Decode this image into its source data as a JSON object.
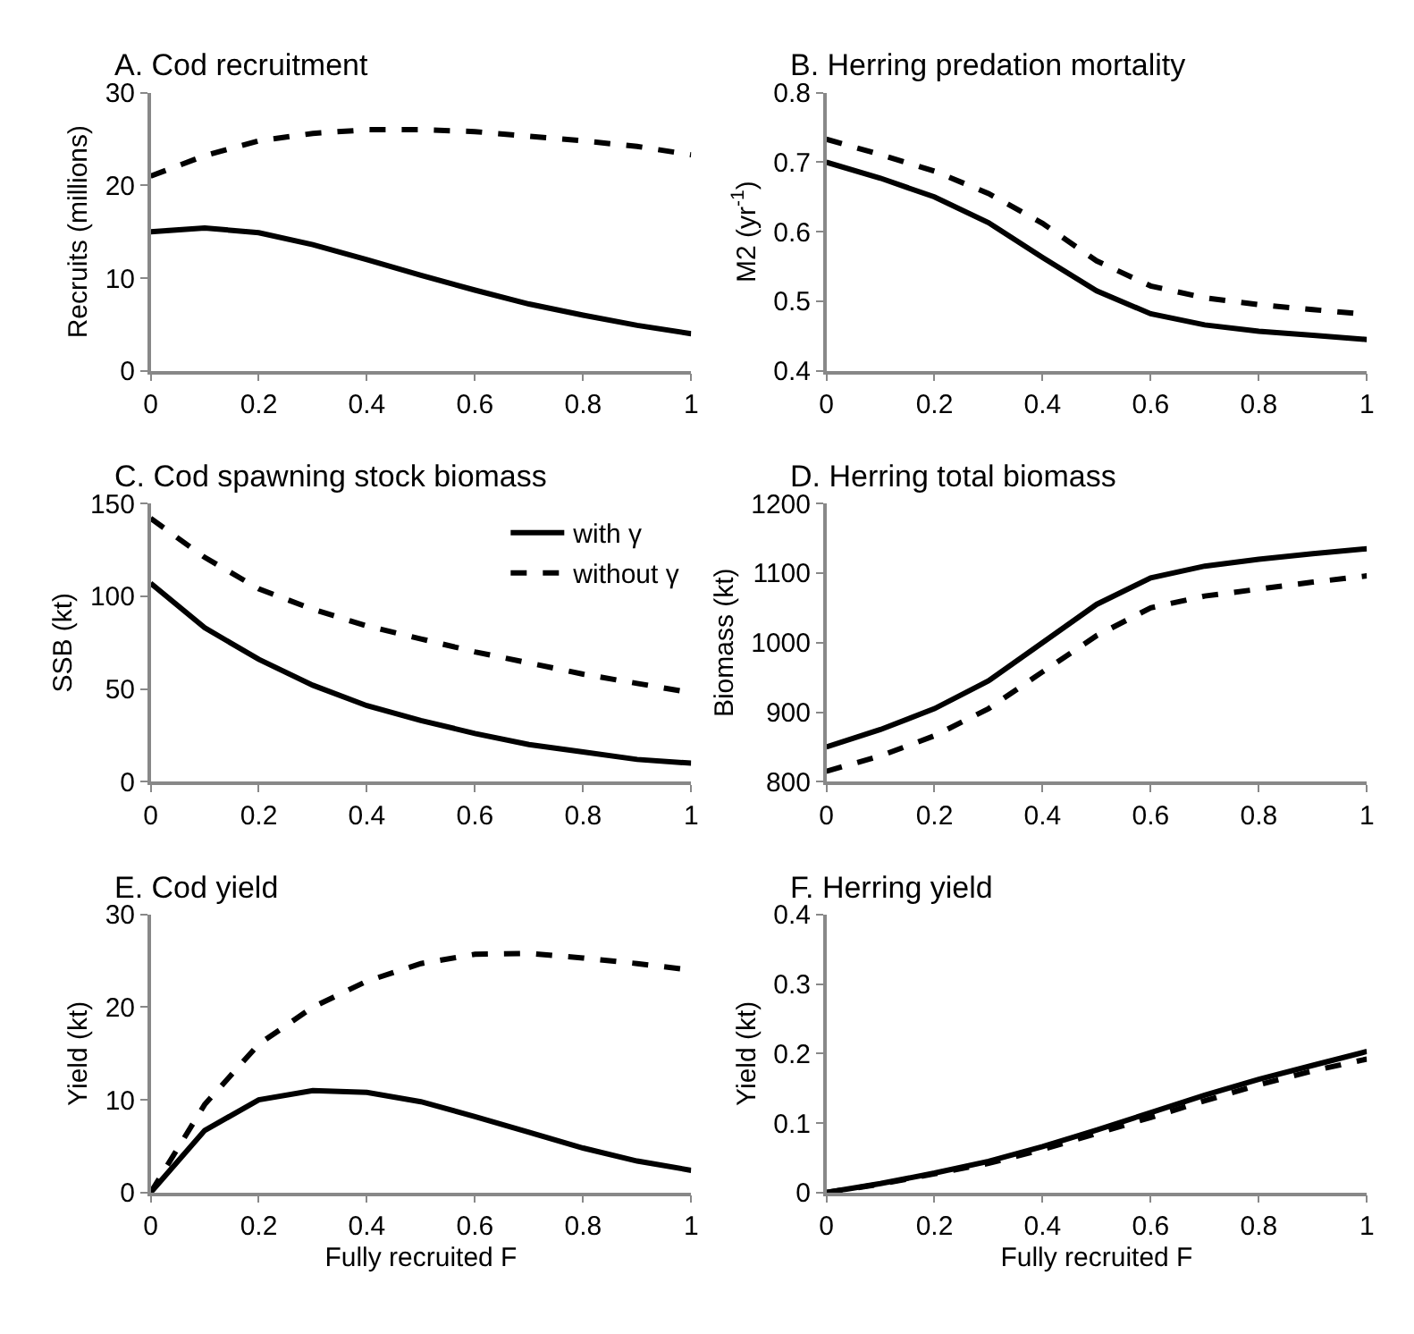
{
  "chart_data": [
    {
      "type": "line",
      "title": "A. Cod recruitment",
      "ylabel": "Recruits (millions)",
      "x": [
        0,
        0.1,
        0.2,
        0.3,
        0.4,
        0.5,
        0.6,
        0.7,
        0.8,
        0.9,
        1
      ],
      "xlim": [
        0,
        1
      ],
      "xticks": [
        0,
        0.2,
        0.4,
        0.6,
        0.8,
        1
      ],
      "ylim": [
        0,
        30
      ],
      "yticks": [
        0,
        10,
        20,
        30
      ],
      "grid": false,
      "legend": false,
      "marker": "none",
      "series": [
        {
          "color": "#000000",
          "line_style": "solid",
          "values": [
            15,
            15.4,
            14.9,
            13.6,
            12,
            10.3,
            8.7,
            7.2,
            6,
            4.9,
            4
          ]
        },
        {
          "color": "#000000",
          "line_style": "dashed",
          "values": [
            21,
            23.2,
            24.8,
            25.6,
            26,
            26,
            25.8,
            25.3,
            24.8,
            24.2,
            23.3
          ]
        }
      ]
    },
    {
      "type": "line",
      "title": "B. Herring predation mortality",
      "ylabel": "M2 (yr$^{-1}$)",
      "x": [
        0,
        0.1,
        0.2,
        0.3,
        0.4,
        0.5,
        0.6,
        0.7,
        0.8,
        0.9,
        1
      ],
      "xlim": [
        0,
        1
      ],
      "xticks": [
        0,
        0.2,
        0.4,
        0.6,
        0.8,
        1
      ],
      "ylim": [
        0.4,
        0.8
      ],
      "yticks": [
        0.4,
        0.5,
        0.6,
        0.7,
        0.8
      ],
      "grid": false,
      "legend": false,
      "marker": "none",
      "series": [
        {
          "color": "#000000",
          "line_style": "solid",
          "values": [
            0.7,
            0.677,
            0.65,
            0.613,
            0.563,
            0.515,
            0.482,
            0.466,
            0.457,
            0.451,
            0.445
          ]
        },
        {
          "color": "#000000",
          "line_style": "dashed",
          "values": [
            0.733,
            0.711,
            0.687,
            0.655,
            0.612,
            0.558,
            0.522,
            0.505,
            0.495,
            0.488,
            0.481
          ]
        }
      ]
    },
    {
      "type": "line",
      "title": "C. Cod spawning stock biomass",
      "ylabel": "SSB (kt)",
      "x": [
        0,
        0.1,
        0.2,
        0.3,
        0.4,
        0.5,
        0.6,
        0.7,
        0.8,
        0.9,
        1
      ],
      "xlim": [
        0,
        1
      ],
      "xticks": [
        0,
        0.2,
        0.4,
        0.6,
        0.8,
        1
      ],
      "ylim": [
        0,
        150
      ],
      "yticks": [
        0,
        50,
        100,
        150
      ],
      "grid": false,
      "legend": "top right",
      "marker": "none",
      "series": [
        {
          "name": "with γ",
          "color": "#000000",
          "line_style": "solid",
          "values": [
            107,
            83,
            66,
            52,
            41,
            33,
            26,
            20,
            16,
            12,
            10
          ]
        },
        {
          "name": "without γ",
          "color": "#000000",
          "line_style": "dashed",
          "values": [
            142,
            121,
            104,
            93,
            84,
            77,
            70,
            64,
            58,
            53,
            48
          ]
        }
      ]
    },
    {
      "type": "line",
      "title": "D. Herring total biomass",
      "ylabel": "Biomass (kt)",
      "x": [
        0,
        0.1,
        0.2,
        0.3,
        0.4,
        0.5,
        0.6,
        0.7,
        0.8,
        0.9,
        1
      ],
      "xlim": [
        0,
        1
      ],
      "xticks": [
        0,
        0.2,
        0.4,
        0.6,
        0.8,
        1
      ],
      "ylim": [
        800,
        1200
      ],
      "yticks": [
        800,
        900,
        1000,
        1100,
        1200
      ],
      "grid": false,
      "legend": false,
      "marker": "none",
      "series": [
        {
          "color": "#000000",
          "line_style": "solid",
          "values": [
            850,
            875,
            905,
            945,
            1000,
            1055,
            1093,
            1110,
            1120,
            1128,
            1135
          ]
        },
        {
          "color": "#000000",
          "line_style": "dashed",
          "values": [
            815,
            837,
            866,
            905,
            958,
            1010,
            1050,
            1067,
            1077,
            1087,
            1096
          ]
        }
      ]
    },
    {
      "type": "line",
      "title": "E. Cod yield",
      "xlabel": "Fully recruited F",
      "ylabel": "Yield (kt)",
      "x": [
        0,
        0.1,
        0.2,
        0.3,
        0.4,
        0.5,
        0.6,
        0.7,
        0.8,
        0.9,
        1
      ],
      "xlim": [
        0,
        1
      ],
      "xticks": [
        0,
        0.2,
        0.4,
        0.6,
        0.8,
        1
      ],
      "ylim": [
        0,
        30
      ],
      "yticks": [
        0,
        10,
        20,
        30
      ],
      "grid": false,
      "legend": false,
      "marker": "none",
      "series": [
        {
          "color": "#000000",
          "line_style": "solid",
          "values": [
            0,
            6.7,
            10,
            11,
            10.8,
            9.8,
            8.2,
            6.5,
            4.8,
            3.4,
            2.4
          ]
        },
        {
          "color": "#000000",
          "line_style": "dashed",
          "values": [
            0,
            9.5,
            16,
            20,
            22.8,
            24.7,
            25.7,
            25.8,
            25.3,
            24.7,
            24
          ]
        }
      ]
    },
    {
      "type": "line",
      "title": "F. Herring yield",
      "xlabel": "Fully recruited F",
      "ylabel": "Yield (kt)",
      "x": [
        0,
        0.1,
        0.2,
        0.3,
        0.4,
        0.5,
        0.6,
        0.7,
        0.8,
        0.9,
        1
      ],
      "xlim": [
        0,
        1
      ],
      "xticks": [
        0,
        0.2,
        0.4,
        0.6,
        0.8,
        1
      ],
      "ylim": [
        0,
        0.4
      ],
      "yticks": [
        0,
        0.1,
        0.2,
        0.3,
        0.4
      ],
      "grid": false,
      "legend": false,
      "marker": "none",
      "series": [
        {
          "color": "#000000",
          "line_style": "solid",
          "values": [
            0,
            0.013,
            0.028,
            0.045,
            0.066,
            0.09,
            0.115,
            0.14,
            0.163,
            0.183,
            0.203
          ]
        },
        {
          "color": "#000000",
          "line_style": "dashed",
          "values": [
            0,
            0.012,
            0.027,
            0.042,
            0.062,
            0.085,
            0.108,
            0.132,
            0.155,
            0.175,
            0.192
          ]
        }
      ]
    }
  ]
}
